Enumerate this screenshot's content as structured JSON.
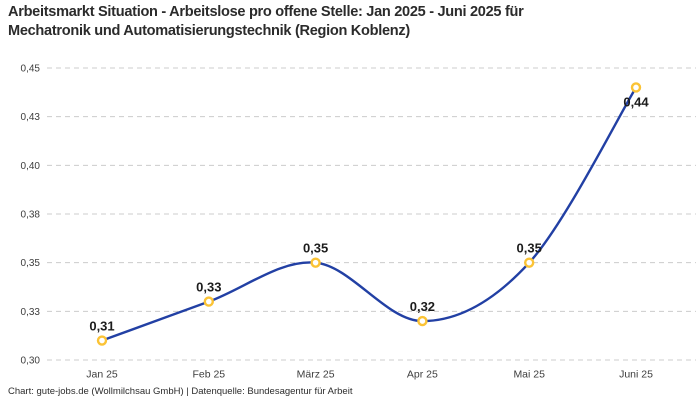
{
  "header": {
    "title_line1": "Arbeitsmarkt Situation - Arbeitslose pro offene Stelle: Jan 2025 - Juni 2025 für",
    "title_line2": "Mechatronik und Automatisierungstechnik (Region Koblenz)"
  },
  "footer": {
    "text": "Chart: gute-jobs.de (Wollmilchsau GmbH) | Datenquelle: Bundesagentur für Arbeit"
  },
  "chart_data": {
    "type": "line",
    "title": "Arbeitsmarkt Situation - Arbeitslose pro offene Stelle: Jan 2025 - Juni 2025 für Mechatronik und Automatisierungstechnik (Region Koblenz)",
    "categories": [
      "Jan 25",
      "Feb 25",
      "März 25",
      "Apr 25",
      "Mai 25",
      "Juni 25"
    ],
    "values": [
      0.31,
      0.33,
      0.35,
      0.32,
      0.35,
      0.44
    ],
    "data_labels": [
      "0,31",
      "0,33",
      "0,35",
      "0,32",
      "0,35",
      "0,44"
    ],
    "data_label_positions": [
      "above",
      "above",
      "above",
      "above",
      "above",
      "below"
    ],
    "y_ticks": [
      0.3,
      0.325,
      0.35,
      0.375,
      0.4,
      0.425,
      0.45
    ],
    "y_tick_labels": [
      "0,30",
      "0,33",
      "0,35",
      "0,38",
      "0,40",
      "0,43",
      "0,45"
    ],
    "ylim": [
      0.3,
      0.45
    ],
    "xlabel": "",
    "ylabel": "",
    "grid": "horizontal-dashed",
    "legend": "none",
    "smooth": true,
    "colors": {
      "line": "#2240A4",
      "marker_ring": "#FBC335",
      "marker_fill": "#FFFFFF",
      "gridline": "#CCCCCC",
      "tick_text": "#3D3D3D",
      "data_label_text": "#1C1C1C"
    }
  }
}
